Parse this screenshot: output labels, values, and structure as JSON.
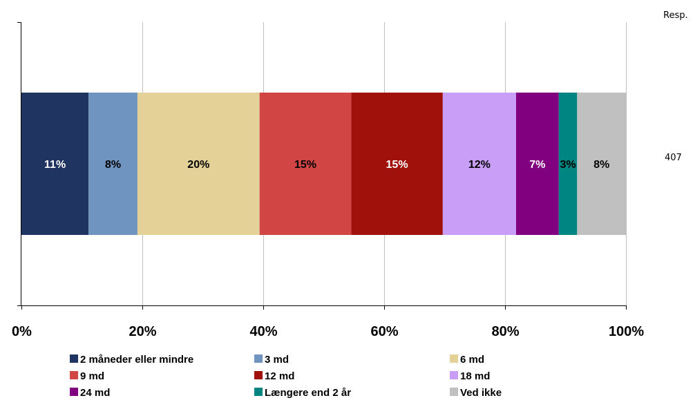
{
  "chart_data": {
    "type": "bar",
    "orientation": "horizontal",
    "stacked": "100%",
    "categories": [
      ""
    ],
    "respondents_header": "Resp.",
    "respondents": "407",
    "series": [
      {
        "name": "2 måneder eller mindre",
        "values": [
          11
        ],
        "label": "11%",
        "color": "#1f3460",
        "label_color": "#ffffff"
      },
      {
        "name": "3 md",
        "values": [
          8
        ],
        "label": "8%",
        "color": "#7094c0",
        "label_color": "#000000"
      },
      {
        "name": "6 md",
        "values": [
          20
        ],
        "label": "20%",
        "color": "#e4d197",
        "label_color": "#000000"
      },
      {
        "name": "9 md",
        "values": [
          15
        ],
        "label": "15%",
        "color": "#d24545",
        "label_color": "#000000"
      },
      {
        "name": "12 md",
        "values": [
          15
        ],
        "label": "15%",
        "color": "#a1110c",
        "label_color": "#ffffff"
      },
      {
        "name": "18 md",
        "values": [
          12
        ],
        "label": "12%",
        "color": "#c99ef7",
        "label_color": "#000000"
      },
      {
        "name": "24 md",
        "values": [
          7
        ],
        "label": "7%",
        "color": "#800080",
        "label_color": "#ffffff"
      },
      {
        "name": "Længere end 2 år",
        "values": [
          3
        ],
        "label": "3%",
        "color": "#008582",
        "label_color": "#000000"
      },
      {
        "name": "Ved ikke",
        "values": [
          8
        ],
        "label": "8%",
        "color": "#c0c0c0",
        "label_color": "#000000"
      }
    ],
    "xlim": [
      0,
      100
    ],
    "xticks": [
      "0%",
      "20%",
      "40%",
      "60%",
      "80%",
      "100%"
    ],
    "grid": true,
    "legend_position": "bottom"
  }
}
